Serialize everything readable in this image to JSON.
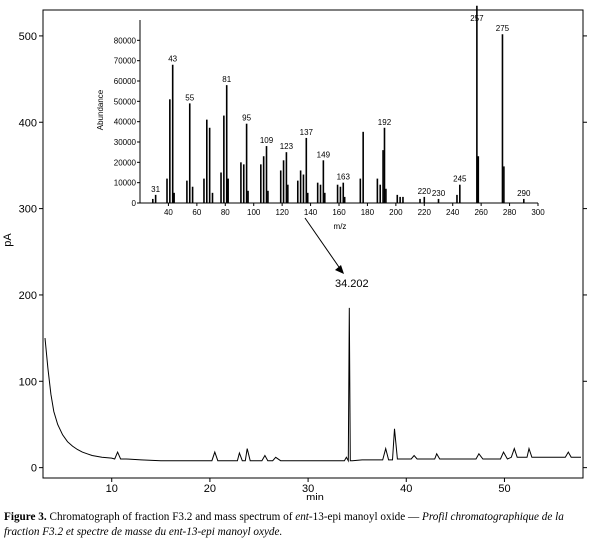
{
  "chart_data": [
    {
      "type": "line",
      "xlabel": "min",
      "ylabel": "pA",
      "xlim": [
        3,
        58
      ],
      "ylim": [
        -12,
        530
      ],
      "x_ticks": [
        10,
        20,
        30,
        40,
        50
      ],
      "y_ticks": [
        0,
        100,
        200,
        300,
        400,
        500
      ],
      "peak_annotation": "34.202",
      "series": [
        {
          "x": [
            3.2,
            3.5,
            3.8,
            4.1,
            4.5,
            5,
            5.5,
            6,
            6.5,
            7,
            7.5,
            8,
            9,
            10,
            10.3,
            10.6,
            10.9,
            11.5,
            13,
            15,
            17,
            19,
            20.2,
            20.5,
            20.8,
            21.5,
            22.8,
            23,
            23.3,
            23.6,
            23.8,
            24.1,
            24.6,
            25.3,
            25.6,
            25.9,
            26.4,
            26.7,
            27.2,
            28,
            29.5,
            31,
            33,
            33.7,
            33.9,
            34.1,
            34.2,
            34.3,
            34.5,
            35.5,
            36.5,
            37.6,
            37.9,
            38.2,
            38.6,
            38.8,
            39.1,
            39.5,
            40.5,
            40.8,
            41.1,
            42,
            42.9,
            43.1,
            43.4,
            44.5,
            45.5,
            46.5,
            47.1,
            47.4,
            47.8,
            48.5,
            49.6,
            49.9,
            50.3,
            50.7,
            51,
            51.3,
            52.3,
            52.5,
            52.8,
            54,
            55,
            56.2,
            56.5,
            56.8,
            57.3,
            57.8
          ],
          "y": [
            150,
            115,
            85,
            65,
            50,
            38,
            30,
            25,
            21,
            18,
            16,
            14,
            12,
            11,
            10,
            18,
            10,
            10,
            9,
            8,
            8,
            8,
            8,
            18,
            8,
            8,
            8,
            17,
            8,
            8,
            22,
            8,
            8,
            8,
            14,
            8,
            8,
            12,
            8,
            8,
            8,
            8,
            8,
            8,
            12,
            8,
            185,
            8,
            8,
            9,
            9,
            9,
            22,
            9,
            9,
            45,
            10,
            10,
            10,
            14,
            10,
            10,
            10,
            16,
            10,
            10,
            10,
            10,
            10,
            16,
            10,
            10,
            10,
            18,
            10,
            12,
            22,
            12,
            12,
            22,
            12,
            12,
            12,
            12,
            18,
            12,
            12,
            12
          ]
        }
      ]
    },
    {
      "type": "bar",
      "xlabel": "m/z",
      "ylabel": "Abundance",
      "xlim": [
        20,
        300
      ],
      "ylim": [
        0,
        90000
      ],
      "x_ticks": [
        40,
        60,
        80,
        100,
        120,
        140,
        160,
        180,
        200,
        220,
        240,
        260,
        280,
        300
      ],
      "y_ticks": [
        0,
        10000,
        20000,
        30000,
        40000,
        50000,
        60000,
        70000,
        80000
      ],
      "labeled_peaks": [
        31,
        43,
        55,
        81,
        95,
        109,
        123,
        137,
        149,
        163,
        192,
        220,
        230,
        245,
        257,
        275,
        290
      ],
      "series": [
        {
          "mz": [
            29,
            31,
            39,
            41,
            43,
            44,
            53,
            55,
            57,
            65,
            67,
            69,
            71,
            77,
            79,
            81,
            82,
            91,
            93,
            95,
            96,
            105,
            107,
            109,
            110,
            119,
            121,
            123,
            124,
            131,
            133,
            135,
            137,
            138,
            145,
            147,
            149,
            150,
            159,
            161,
            163,
            164,
            175,
            177,
            187,
            189,
            191,
            192,
            193,
            201,
            203,
            205,
            217,
            220,
            230,
            243,
            245,
            257,
            258,
            275,
            276,
            290
          ],
          "abundance": [
            2000,
            4000,
            12000,
            51000,
            68000,
            5000,
            11000,
            49000,
            8000,
            12000,
            41000,
            37000,
            5000,
            15000,
            43000,
            58000,
            12000,
            20000,
            19000,
            39000,
            6000,
            19000,
            23000,
            28000,
            6000,
            16000,
            21000,
            25000,
            9000,
            11000,
            16000,
            14000,
            32000,
            5000,
            10000,
            9000,
            21000,
            5000,
            9000,
            8000,
            10000,
            3000,
            12000,
            35000,
            12000,
            9000,
            26000,
            37000,
            7000,
            4000,
            3000,
            3000,
            2000,
            3000,
            2000,
            4000,
            9000,
            97000,
            23000,
            83000,
            18000,
            2000
          ]
        }
      ]
    }
  ],
  "caption": {
    "label": "Figure 3.",
    "text_before_italic": " Chromatograph of fraction F3.2 and mass spectrum of ",
    "italic_1": "ent",
    "text_after_italic": "-13-epi manoyl oxide — ",
    "french": "Profil chromatographique de la fraction F3.2 et spectre de masse du ent-13-epi manoyl oxyde."
  }
}
